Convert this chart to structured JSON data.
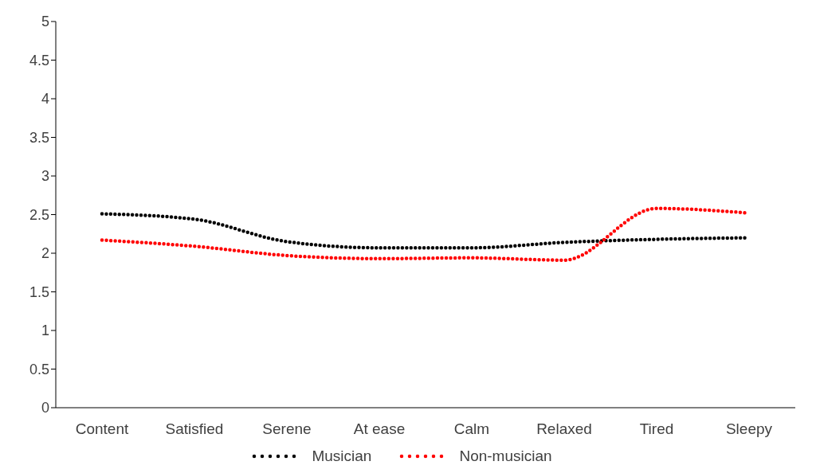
{
  "chart_data": {
    "type": "line",
    "categories": [
      "Content",
      "Satisfied",
      "Serene",
      "At ease",
      "Calm",
      "Relaxed",
      "Tired",
      "Sleepy"
    ],
    "series": [
      {
        "name": "Musician",
        "color": "#000000",
        "values": [
          2.51,
          2.44,
          2.15,
          2.07,
          2.07,
          2.14,
          2.18,
          2.2
        ]
      },
      {
        "name": "Non-musician",
        "color": "#ff0000",
        "values": [
          2.17,
          2.09,
          1.97,
          1.93,
          1.94,
          1.91,
          2.58,
          2.52
        ]
      }
    ],
    "ylim": [
      0,
      5
    ],
    "yticks": [
      0,
      0.5,
      1,
      1.5,
      2,
      2.5,
      3,
      3.5,
      4,
      4.5,
      5
    ],
    "grid": false,
    "legend": "bottom",
    "marker": "none",
    "line_style": "dotted"
  }
}
